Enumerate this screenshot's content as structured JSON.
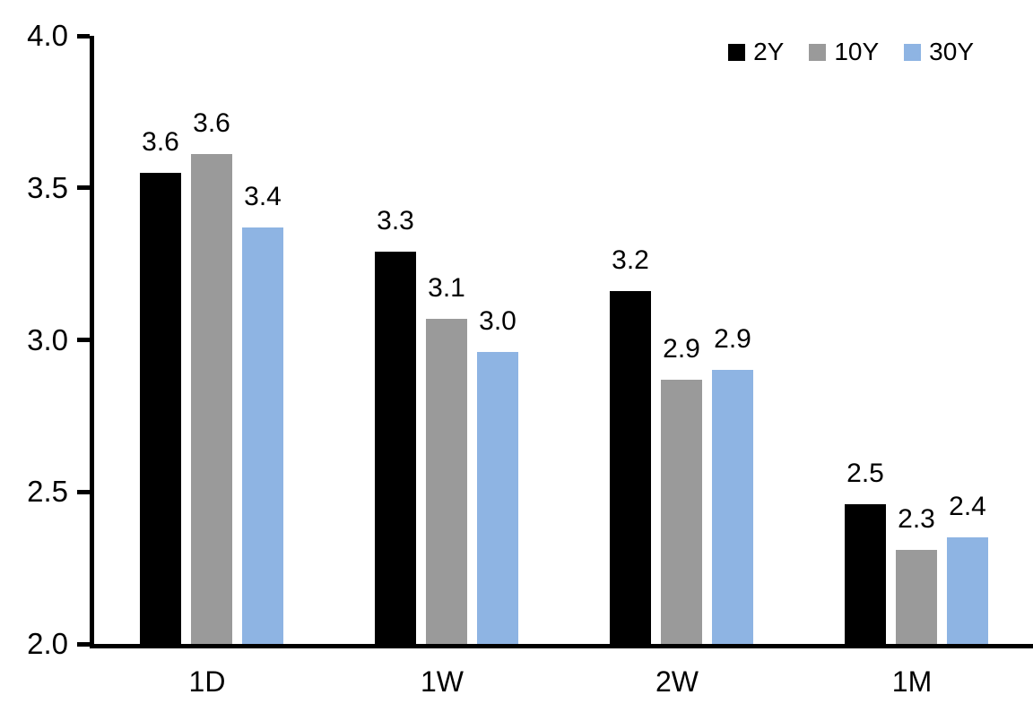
{
  "chart_data": {
    "type": "bar",
    "title": "",
    "xlabel": "",
    "ylabel": "",
    "categories": [
      "1D",
      "1W",
      "2W",
      "1M"
    ],
    "series": [
      {
        "name": "2Y",
        "color": "#000000",
        "values": [
          3.55,
          3.29,
          3.16,
          2.46
        ],
        "labels": [
          "3.6",
          "3.3",
          "3.2",
          "2.5"
        ]
      },
      {
        "name": "10Y",
        "color": "#9A9A9A",
        "values": [
          3.61,
          3.07,
          2.87,
          2.31
        ],
        "labels": [
          "3.6",
          "3.1",
          "2.9",
          "2.3"
        ]
      },
      {
        "name": "30Y",
        "color": "#8EB4E3",
        "values": [
          3.37,
          2.96,
          2.9,
          2.35
        ],
        "labels": [
          "3.4",
          "3.0",
          "2.9",
          "2.4"
        ]
      }
    ],
    "ylim": [
      2.0,
      4.0
    ],
    "yticks": [
      "4.0",
      "3.5",
      "3.0",
      "2.5",
      "2.0"
    ],
    "ytick_values": [
      4.0,
      3.5,
      3.0,
      2.5,
      2.0
    ],
    "grid": false,
    "legend_position": "top-right",
    "axis_color": "#000000",
    "background_color": "#ffffff"
  }
}
